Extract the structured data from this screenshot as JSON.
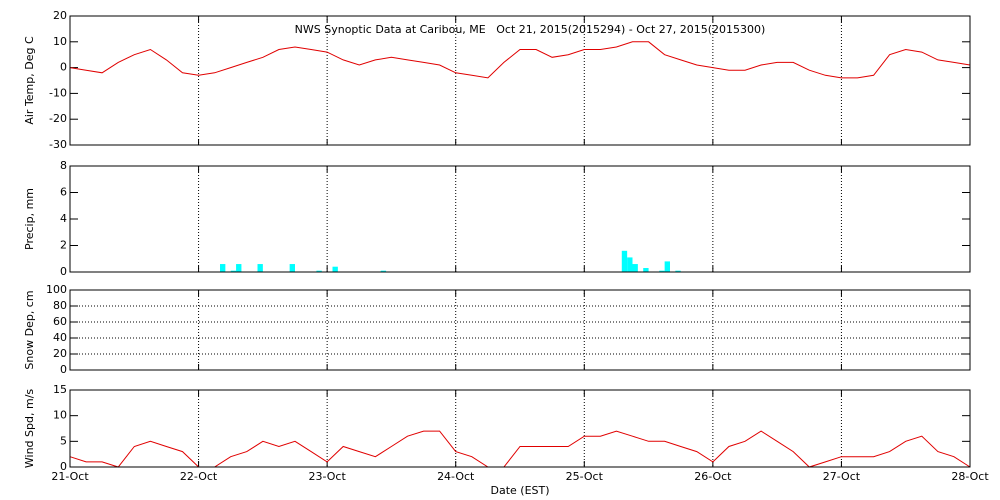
{
  "title": "NWS Synoptic Data at Caribou, ME   Oct 21, 2015(2015294) - Oct 27, 2015(2015300)",
  "x_axis": {
    "label": "Date (EST)",
    "xlim": [
      "2015-10-21",
      "2015-10-28"
    ],
    "xticks": [
      {
        "value": "2015-10-21",
        "label": "21-Oct"
      },
      {
        "value": "2015-10-22",
        "label": "22-Oct"
      },
      {
        "value": "2015-10-23",
        "label": "23-Oct"
      },
      {
        "value": "2015-10-24",
        "label": "24-Oct"
      },
      {
        "value": "2015-10-25",
        "label": "25-Oct"
      },
      {
        "value": "2015-10-26",
        "label": "26-Oct"
      },
      {
        "value": "2015-10-27",
        "label": "27-Oct"
      },
      {
        "value": "2015-10-28",
        "label": "28-Oct"
      }
    ]
  },
  "chart_data": [
    {
      "type": "line",
      "ylabel": "Air Temp, Deg C",
      "color": "#e00000",
      "ylim": [
        -30,
        20
      ],
      "yticks": [
        -30,
        -20,
        -10,
        0,
        10,
        20
      ],
      "grid": "x",
      "values": [
        0,
        -1,
        -2,
        2,
        5,
        7,
        3,
        -2,
        -3,
        -2,
        0,
        2,
        4,
        7,
        8,
        7,
        6,
        3,
        1,
        3,
        4,
        3,
        2,
        1,
        -2,
        -3,
        -4,
        2,
        7,
        7,
        4,
        5,
        7,
        7,
        8,
        10,
        10,
        5,
        3,
        1,
        0,
        -1,
        -1,
        1,
        2,
        2,
        -1,
        -3,
        -4,
        -4,
        -3,
        5,
        7,
        6,
        3,
        2,
        1
      ]
    },
    {
      "type": "bar",
      "ylabel": "Precip, mm",
      "color": "#00ffff",
      "ylim": [
        0,
        8
      ],
      "yticks": [
        0,
        2,
        4,
        6,
        8
      ],
      "grid": "x",
      "values": [
        0,
        0,
        0,
        0,
        0,
        0,
        0,
        0,
        0,
        0,
        0,
        0,
        0,
        0,
        0,
        0,
        0,
        0,
        0,
        0,
        0,
        0,
        0,
        0,
        0,
        0,
        0,
        0,
        0.6,
        0,
        0.1,
        0.6,
        0,
        0,
        0,
        0.6,
        0,
        0,
        0,
        0,
        0,
        0.6,
        0,
        0,
        0,
        0,
        0.1,
        0,
        0,
        0.4,
        0,
        0,
        0,
        0,
        0,
        0,
        0,
        0,
        0.1,
        0,
        0,
        0,
        0,
        0,
        0,
        0,
        0,
        0,
        0,
        0,
        0,
        0,
        0,
        0,
        0,
        0,
        0,
        0,
        0,
        0,
        0,
        0,
        0,
        0,
        0,
        0,
        0,
        0,
        0,
        0,
        0,
        0,
        0,
        0,
        0,
        0,
        0,
        0,
        0,
        0,
        0,
        0,
        0,
        1.6,
        1.1,
        0.6,
        0,
        0.3,
        0,
        0,
        0.1,
        0.8,
        0,
        0.1,
        0,
        0,
        0,
        0,
        0,
        0,
        0,
        0,
        0,
        0,
        0,
        0,
        0,
        0,
        0,
        0,
        0,
        0,
        0,
        0,
        0,
        0,
        0,
        0,
        0,
        0,
        0,
        0,
        0,
        0,
        0,
        0,
        0,
        0,
        0,
        0,
        0,
        0,
        0,
        0,
        0,
        0,
        0,
        0,
        0,
        0,
        0,
        0,
        0,
        0,
        0,
        0,
        0,
        0
      ]
    },
    {
      "type": "empty",
      "ylabel": "Snow Dep, cm",
      "ylim": [
        0,
        100
      ],
      "yticks": [
        0,
        20,
        40,
        60,
        80,
        100
      ],
      "grid": "xy"
    },
    {
      "type": "line",
      "ylabel": "Wind Spd, m/s",
      "color": "#e00000",
      "ylim": [
        0,
        15
      ],
      "yticks": [
        0,
        5,
        10,
        15
      ],
      "grid": "x",
      "values": [
        2,
        1,
        1,
        0,
        4,
        5,
        4,
        3,
        0,
        0,
        2,
        3,
        5,
        4,
        5,
        3,
        1,
        4,
        3,
        2,
        4,
        6,
        7,
        7,
        3,
        2,
        0,
        0,
        4,
        4,
        4,
        4,
        6,
        6,
        7,
        6,
        5,
        5,
        4,
        3,
        1,
        4,
        5,
        7,
        5,
        3,
        0,
        1,
        2,
        2,
        2,
        3,
        5,
        6,
        3,
        2,
        0
      ]
    }
  ]
}
